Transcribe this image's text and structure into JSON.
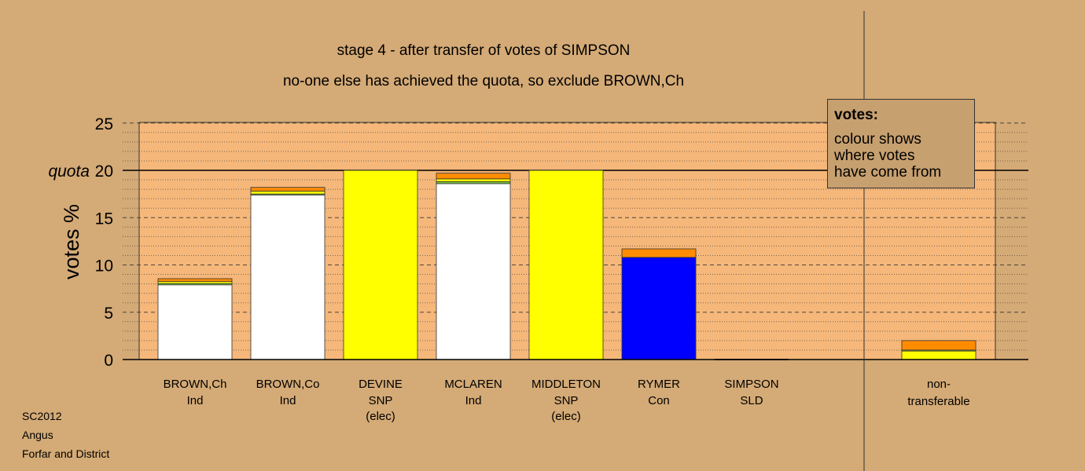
{
  "header": {
    "title": "stage 4 - after transfer of votes of SIMPSON",
    "subtitle": "no-one else has achieved the quota, so exclude BROWN,Ch"
  },
  "footer": {
    "line1": "SC2012",
    "line2": "Angus",
    "line3": "Forfar and District"
  },
  "legend": {
    "title": "votes:",
    "text": "colour shows\nwhere votes\nhave come from"
  },
  "colors": {
    "background": "#d4aa76",
    "plot_area": "#f5b77a",
    "white": "#ffffff",
    "yellow": "#ffff00",
    "green": "#7ac943",
    "orange": "#ff8c00",
    "blue": "#0000ff"
  },
  "chart_data": {
    "type": "bar",
    "stacked": true,
    "ylabel": "votes %",
    "ylim": [
      0,
      25
    ],
    "yticks": [
      0,
      5,
      10,
      15,
      20,
      25
    ],
    "quota": {
      "value": 20,
      "label": "quota"
    },
    "grid": "dashed major lines every 5, dotted minor lines every 1",
    "legend_placement": "top-right",
    "categories": [
      {
        "name": "BROWN,Ch",
        "party": "Ind",
        "status": "",
        "segments": [
          {
            "source": "white",
            "value": 7.9
          },
          {
            "source": "green",
            "value": 0.15
          },
          {
            "source": "yellow",
            "value": 0.2
          },
          {
            "source": "orange",
            "value": 0.3
          }
        ]
      },
      {
        "name": "BROWN,Co",
        "party": "Ind",
        "status": "",
        "segments": [
          {
            "source": "white",
            "value": 17.4
          },
          {
            "source": "green",
            "value": 0.1
          },
          {
            "source": "yellow",
            "value": 0.3
          },
          {
            "source": "orange",
            "value": 0.4
          }
        ]
      },
      {
        "name": "DEVINE",
        "party": "SNP",
        "status": "(elec)",
        "segments": [
          {
            "source": "yellow",
            "value": 20.0
          }
        ]
      },
      {
        "name": "MCLAREN",
        "party": "Ind",
        "status": "",
        "segments": [
          {
            "source": "white",
            "value": 18.6
          },
          {
            "source": "green",
            "value": 0.2
          },
          {
            "source": "yellow",
            "value": 0.3
          },
          {
            "source": "orange",
            "value": 0.6
          }
        ]
      },
      {
        "name": "MIDDLETON",
        "party": "SNP",
        "status": "(elec)",
        "segments": [
          {
            "source": "yellow",
            "value": 20.0
          }
        ]
      },
      {
        "name": "RYMER",
        "party": "Con",
        "status": "",
        "segments": [
          {
            "source": "blue",
            "value": 10.8
          },
          {
            "source": "orange",
            "value": 0.9
          }
        ]
      },
      {
        "name": "SIMPSON",
        "party": "SLD",
        "status": "",
        "segments": []
      }
    ],
    "non_transferable": {
      "label_line1": "non-",
      "label_line2": "transferable",
      "segments": [
        {
          "source": "yellow",
          "value": 0.9
        },
        {
          "source": "green",
          "value": 0.1
        },
        {
          "source": "orange",
          "value": 1.0
        }
      ]
    }
  }
}
